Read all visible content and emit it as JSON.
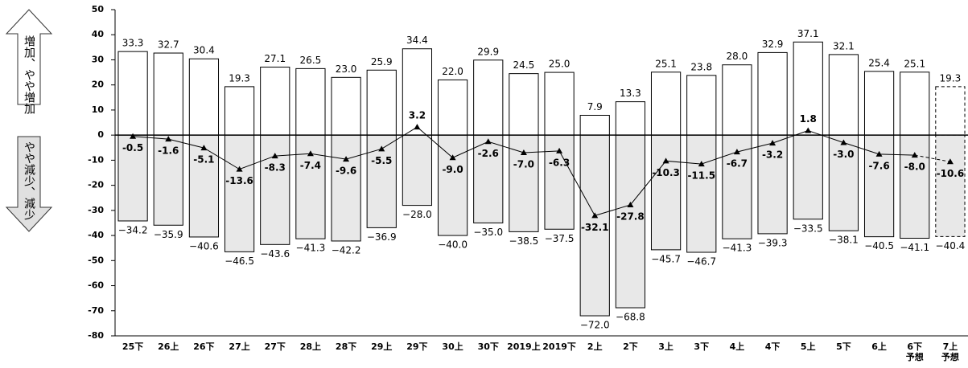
{
  "chart_data": {
    "type": "diverging_bar_line",
    "annotations": [
      "増加、やや増加",
      "やや減少、減少"
    ],
    "categories": [
      "25下",
      "26上",
      "26下",
      "27上",
      "27下",
      "28上",
      "28下",
      "29上",
      "29下",
      "30上",
      "30下",
      "2019上",
      "2019下",
      "2上",
      "2下",
      "3上",
      "3下",
      "4上",
      "4下",
      "5上",
      "5下",
      "6上",
      "6下\n予想",
      "7上\n予想"
    ],
    "series": [
      {
        "kind": "bar",
        "color": "#ffffff",
        "values": [
          33.3,
          32.7,
          30.4,
          19.3,
          27.1,
          26.5,
          23.0,
          25.9,
          34.4,
          22.0,
          29.9,
          24.5,
          25.0,
          7.9,
          13.3,
          25.1,
          23.8,
          28.0,
          32.9,
          37.1,
          32.1,
          25.4,
          25.1,
          19.3
        ],
        "value_labels": [
          "33.3",
          "32.7",
          "30.4",
          "19.3",
          "27.1",
          "26.5",
          "23.0",
          "25.9",
          "34.4",
          "22.0",
          "29.9",
          "24.5",
          "25.0",
          "7.9",
          "13.3",
          "25.1",
          "23.8",
          "28.0",
          "32.9",
          "37.1",
          "32.1",
          "25.4",
          "25.1",
          "19.3"
        ]
      },
      {
        "kind": "bar",
        "color": "#e8e8e8",
        "values": [
          -34.2,
          -35.9,
          -40.6,
          -46.5,
          -43.6,
          -41.3,
          -42.2,
          -36.9,
          -28.0,
          -40.0,
          -35.0,
          -38.5,
          -37.5,
          -72.0,
          -68.8,
          -45.7,
          -46.7,
          -41.3,
          -39.3,
          -33.5,
          -38.1,
          -40.5,
          -41.1,
          -40.4
        ],
        "value_labels": [
          "−34.2",
          "−35.9",
          "−40.6",
          "−46.5",
          "−43.6",
          "−41.3",
          "−42.2",
          "−36.9",
          "−28.0",
          "−40.0",
          "−35.0",
          "−38.5",
          "−37.5",
          "−72.0",
          "−68.8",
          "−45.7",
          "−46.7",
          "−41.3",
          "−39.3",
          "−33.5",
          "−38.1",
          "−40.5",
          "−41.1",
          "−40.4"
        ]
      },
      {
        "kind": "line",
        "color": "#000000",
        "values": [
          -0.5,
          -1.6,
          -5.1,
          -13.6,
          -8.3,
          -7.4,
          -9.6,
          -5.5,
          3.2,
          -9.0,
          -2.6,
          -7.0,
          -6.3,
          -32.1,
          -27.8,
          -10.3,
          -11.5,
          -6.7,
          -3.2,
          1.8,
          -3.0,
          -7.6,
          -8.0,
          -10.6
        ],
        "value_labels": [
          "-0.5",
          "-1.6",
          "-5.1",
          "-13.6",
          "-8.3",
          "-7.4",
          "-9.6",
          "-5.5",
          "3.2",
          "-9.0",
          "-2.6",
          "-7.0",
          "-6.3",
          "-32.1",
          "-27.8",
          "-10.3",
          "-11.5",
          "-6.7",
          "-3.2",
          "1.8",
          "-3.0",
          "-7.6",
          "-8.0",
          "-10.6"
        ]
      }
    ],
    "dashed_index": 23,
    "ylim": [
      -80,
      50
    ],
    "yticks": [
      -80,
      -70,
      -60,
      -50,
      -40,
      -30,
      -20,
      -10,
      0,
      10,
      20,
      30,
      40,
      50
    ],
    "grid": false
  }
}
